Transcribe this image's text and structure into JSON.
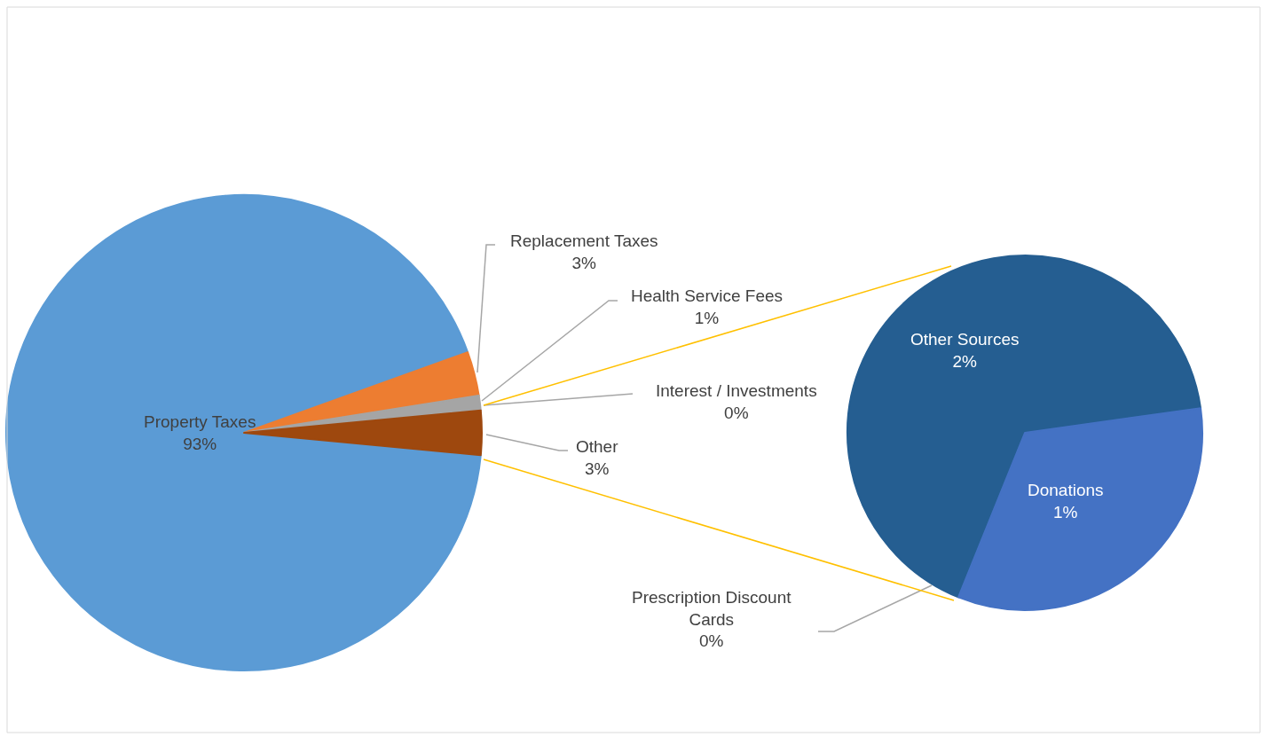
{
  "chart_data": [
    {
      "type": "pie",
      "categories": [
        "Property Taxes",
        "Replacement Taxes",
        "Health Service Fees",
        "Interest / Investments",
        "Other"
      ],
      "values": [
        93,
        3,
        1,
        0,
        3
      ],
      "value_labels": [
        "93%",
        "3%",
        "1%",
        "0%",
        "3%"
      ],
      "colors": [
        "#5b9bd5",
        "#ed7d31",
        "#a5a5a5",
        "#ffc000",
        "#9e480e"
      ]
    },
    {
      "type": "pie",
      "categories": [
        "Other Sources",
        "Donations",
        "Prescription Discount Cards"
      ],
      "values": [
        2,
        1,
        0
      ],
      "value_labels": [
        "2%",
        "1%",
        "0%"
      ],
      "colors": [
        "#255e91",
        "#4472c4",
        "#70ad47"
      ]
    }
  ]
}
